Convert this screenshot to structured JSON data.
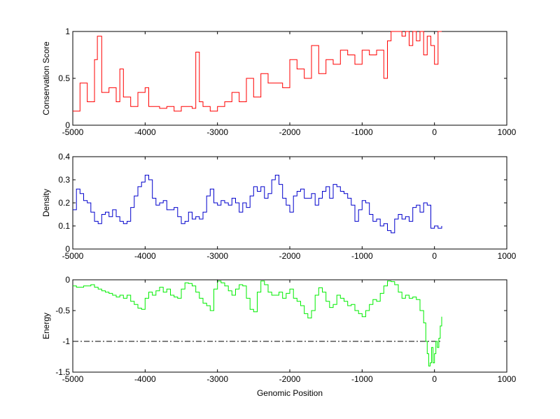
{
  "chart_data": [
    {
      "type": "line",
      "ylabel": "Conservation Score",
      "xlim": [
        -5000,
        1000
      ],
      "ylim": [
        0,
        1
      ],
      "xticks": [
        -5000,
        -4000,
        -3000,
        -2000,
        -1000,
        0,
        1000
      ],
      "yticks": [
        0,
        0.5,
        1
      ],
      "ytick_labels": [
        "0",
        "0.5",
        "1"
      ],
      "grid": false,
      "line_color": "#ff0000",
      "series": [
        {
          "x": [
            -5000,
            -4900,
            -4800,
            -4700,
            -4660,
            -4600,
            -4500,
            -4400,
            -4350,
            -4300,
            -4200,
            -4100,
            -4000,
            -3950,
            -3900,
            -3800,
            -3700,
            -3600,
            -3500,
            -3450,
            -3400,
            -3350,
            -3300,
            -3250,
            -3200,
            -3100,
            -3000,
            -2900,
            -2800,
            -2700,
            -2600,
            -2500,
            -2400,
            -2300,
            -2200,
            -2100,
            -2000,
            -1900,
            -1800,
            -1700,
            -1600,
            -1500,
            -1400,
            -1300,
            -1200,
            -1100,
            -1000,
            -900,
            -800,
            -700,
            -650,
            -600,
            -550,
            -500,
            -450,
            -400,
            -350,
            -300,
            -250,
            -200,
            -150,
            -100,
            -50,
            0,
            50,
            100
          ],
          "y": [
            0.15,
            0.45,
            0.25,
            0.7,
            0.95,
            0.35,
            0.4,
            0.25,
            0.6,
            0.3,
            0.2,
            0.35,
            0.4,
            0.2,
            0.2,
            0.18,
            0.2,
            0.15,
            0.2,
            0.2,
            0.2,
            0.18,
            0.78,
            0.25,
            0.2,
            0.15,
            0.2,
            0.25,
            0.35,
            0.25,
            0.5,
            0.3,
            0.55,
            0.45,
            0.45,
            0.4,
            0.7,
            0.6,
            0.5,
            0.85,
            0.55,
            0.7,
            0.65,
            0.8,
            0.75,
            0.65,
            0.8,
            0.75,
            0.8,
            0.5,
            0.9,
            1,
            1,
            1,
            0.95,
            1,
            0.85,
            1,
            0.9,
            1,
            0.75,
            0.95,
            0.85,
            0.65,
            1,
            1
          ]
        }
      ]
    },
    {
      "type": "line",
      "ylabel": "Density",
      "xlim": [
        -5000,
        1000
      ],
      "ylim": [
        0,
        0.4
      ],
      "xticks": [
        -5000,
        -4000,
        -3000,
        -2000,
        -1000,
        0,
        1000
      ],
      "yticks": [
        0,
        0.1,
        0.2,
        0.3,
        0.4
      ],
      "ytick_labels": [
        "0",
        "0.1",
        "0.2",
        "0.3",
        "0.4"
      ],
      "grid": false,
      "line_color": "#0000cc",
      "series": [
        {
          "x": [
            -5000,
            -4950,
            -4900,
            -4850,
            -4800,
            -4750,
            -4700,
            -4650,
            -4600,
            -4550,
            -4500,
            -4450,
            -4400,
            -4350,
            -4300,
            -4250,
            -4200,
            -4150,
            -4100,
            -4050,
            -4000,
            -3950,
            -3900,
            -3850,
            -3800,
            -3750,
            -3700,
            -3650,
            -3600,
            -3550,
            -3500,
            -3450,
            -3400,
            -3350,
            -3300,
            -3250,
            -3200,
            -3150,
            -3100,
            -3050,
            -3000,
            -2950,
            -2900,
            -2850,
            -2800,
            -2750,
            -2700,
            -2650,
            -2600,
            -2550,
            -2500,
            -2450,
            -2400,
            -2350,
            -2300,
            -2250,
            -2200,
            -2150,
            -2100,
            -2050,
            -2000,
            -1950,
            -1900,
            -1850,
            -1800,
            -1750,
            -1700,
            -1650,
            -1600,
            -1550,
            -1500,
            -1450,
            -1400,
            -1350,
            -1300,
            -1250,
            -1200,
            -1150,
            -1100,
            -1050,
            -1000,
            -950,
            -900,
            -850,
            -800,
            -750,
            -700,
            -650,
            -600,
            -550,
            -500,
            -450,
            -400,
            -350,
            -300,
            -250,
            -200,
            -150,
            -100,
            -70,
            -50,
            0,
            50,
            100
          ],
          "y": [
            0.17,
            0.26,
            0.24,
            0.21,
            0.2,
            0.16,
            0.12,
            0.11,
            0.15,
            0.16,
            0.14,
            0.17,
            0.14,
            0.12,
            0.11,
            0.12,
            0.18,
            0.23,
            0.27,
            0.29,
            0.32,
            0.3,
            0.22,
            0.19,
            0.2,
            0.21,
            0.17,
            0.17,
            0.18,
            0.14,
            0.11,
            0.12,
            0.16,
            0.13,
            0.14,
            0.13,
            0.16,
            0.23,
            0.26,
            0.2,
            0.19,
            0.21,
            0.2,
            0.19,
            0.22,
            0.2,
            0.16,
            0.2,
            0.18,
            0.23,
            0.27,
            0.25,
            0.27,
            0.22,
            0.24,
            0.3,
            0.32,
            0.28,
            0.22,
            0.19,
            0.16,
            0.23,
            0.25,
            0.26,
            0.22,
            0.22,
            0.24,
            0.19,
            0.22,
            0.25,
            0.27,
            0.22,
            0.28,
            0.27,
            0.25,
            0.24,
            0.22,
            0.19,
            0.12,
            0.17,
            0.21,
            0.2,
            0.15,
            0.12,
            0.13,
            0.1,
            0.11,
            0.08,
            0.07,
            0.13,
            0.15,
            0.13,
            0.14,
            0.12,
            0.18,
            0.19,
            0.16,
            0.2,
            0.19,
            0.19,
            0.09,
            0.1,
            0.09,
            0.1
          ]
        }
      ]
    },
    {
      "type": "line",
      "ylabel": "Energy",
      "xlabel": "Genomic Position",
      "xlim": [
        -5000,
        1000
      ],
      "ylim": [
        -1.5,
        0
      ],
      "xticks": [
        -5000,
        -4000,
        -3000,
        -2000,
        -1000,
        0,
        1000
      ],
      "yticks": [
        -1.5,
        -1,
        -0.5,
        0
      ],
      "ytick_labels": [
        "-1.5",
        "-1",
        "-0.5",
        "0"
      ],
      "grid": false,
      "line_color": "#00ee00",
      "threshold": {
        "y": -1,
        "x_range": [
          -5000,
          100
        ],
        "color": "#000000",
        "style": "dash-dot"
      },
      "series": [
        {
          "x": [
            -5000,
            -4950,
            -4900,
            -4850,
            -4800,
            -4750,
            -4700,
            -4650,
            -4600,
            -4550,
            -4500,
            -4450,
            -4400,
            -4350,
            -4300,
            -4250,
            -4200,
            -4150,
            -4100,
            -4050,
            -4000,
            -3950,
            -3900,
            -3850,
            -3800,
            -3750,
            -3700,
            -3650,
            -3600,
            -3550,
            -3500,
            -3450,
            -3400,
            -3350,
            -3300,
            -3250,
            -3200,
            -3150,
            -3100,
            -3050,
            -3000,
            -2950,
            -2900,
            -2850,
            -2800,
            -2750,
            -2700,
            -2650,
            -2600,
            -2550,
            -2500,
            -2450,
            -2400,
            -2350,
            -2300,
            -2250,
            -2200,
            -2150,
            -2100,
            -2050,
            -2000,
            -1950,
            -1900,
            -1850,
            -1800,
            -1750,
            -1700,
            -1650,
            -1600,
            -1550,
            -1500,
            -1450,
            -1400,
            -1350,
            -1300,
            -1250,
            -1200,
            -1150,
            -1100,
            -1050,
            -1000,
            -950,
            -900,
            -850,
            -800,
            -750,
            -700,
            -650,
            -600,
            -550,
            -500,
            -450,
            -400,
            -350,
            -300,
            -250,
            -200,
            -150,
            -120,
            -100,
            -80,
            -60,
            -40,
            -20,
            0,
            20,
            40,
            60,
            80,
            100
          ],
          "y": [
            -0.1,
            -0.12,
            -0.12,
            -0.1,
            -0.1,
            -0.08,
            -0.12,
            -0.15,
            -0.18,
            -0.2,
            -0.22,
            -0.25,
            -0.28,
            -0.25,
            -0.3,
            -0.25,
            -0.35,
            -0.4,
            -0.46,
            -0.48,
            -0.3,
            -0.2,
            -0.25,
            -0.18,
            -0.12,
            -0.2,
            -0.15,
            -0.25,
            -0.28,
            -0.3,
            -0.15,
            -0.05,
            -0.06,
            -0.1,
            -0.2,
            -0.3,
            -0.38,
            -0.42,
            -0.5,
            -0.15,
            -0.02,
            -0.05,
            -0.1,
            -0.18,
            -0.25,
            -0.15,
            -0.08,
            -0.1,
            -0.3,
            -0.48,
            -0.52,
            -0.2,
            -0.02,
            -0.08,
            -0.2,
            -0.25,
            -0.25,
            -0.2,
            -0.3,
            -0.22,
            -0.15,
            -0.3,
            -0.35,
            -0.42,
            -0.55,
            -0.62,
            -0.5,
            -0.25,
            -0.13,
            -0.2,
            -0.35,
            -0.45,
            -0.4,
            -0.25,
            -0.3,
            -0.35,
            -0.42,
            -0.4,
            -0.5,
            -0.55,
            -0.6,
            -0.5,
            -0.4,
            -0.32,
            -0.35,
            -0.22,
            -0.1,
            -0.02,
            -0.03,
            -0.08,
            -0.2,
            -0.3,
            -0.25,
            -0.3,
            -0.28,
            -0.32,
            -0.5,
            -0.7,
            -1.0,
            -1.2,
            -1.4,
            -1.35,
            -1.1,
            -1.35,
            -1.2,
            -1.0,
            -1.1,
            -0.95,
            -0.75,
            -0.6
          ]
        }
      ]
    }
  ]
}
